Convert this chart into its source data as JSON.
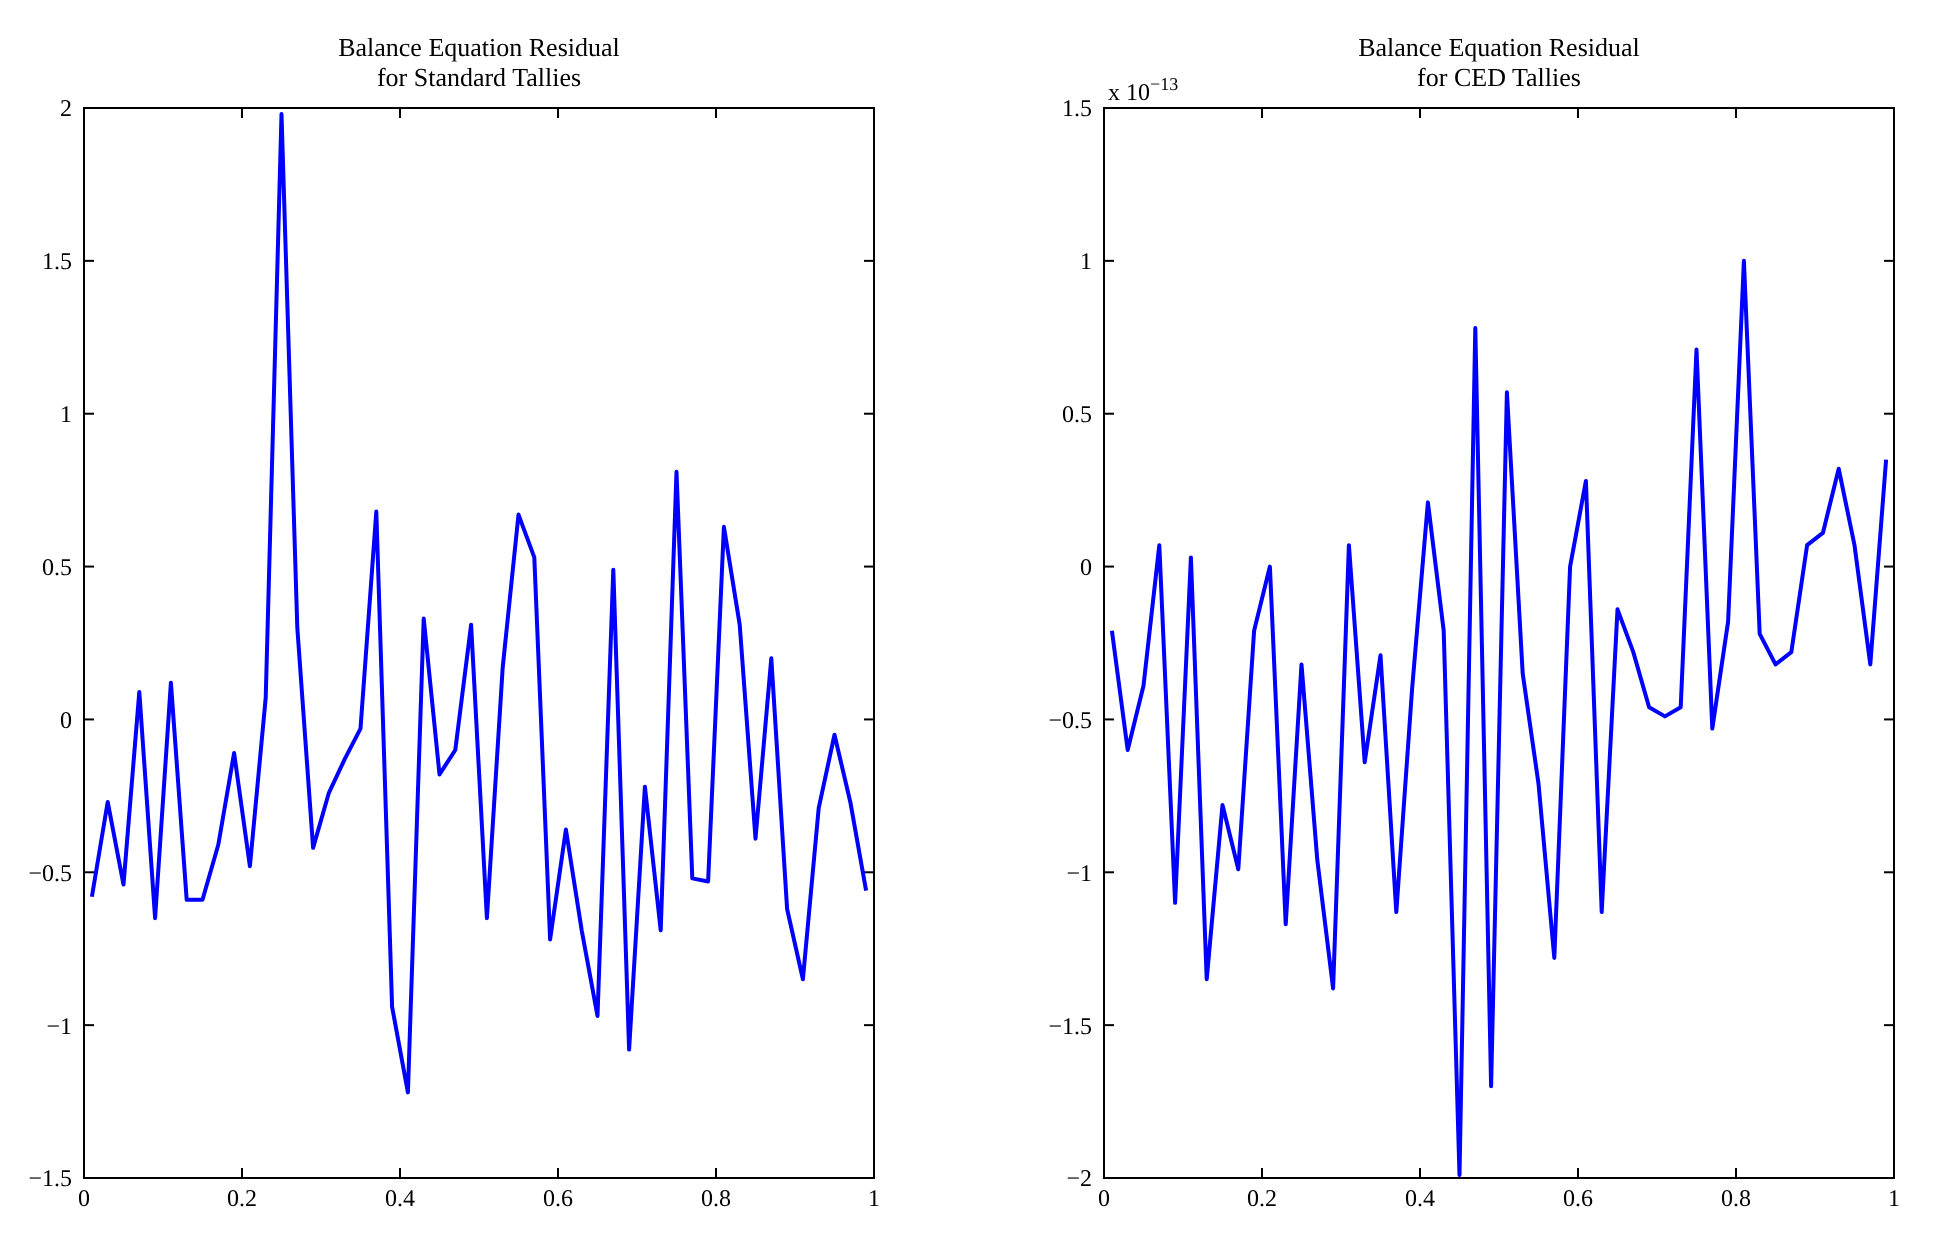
{
  "chart_data": [
    {
      "type": "line",
      "title": "Balance Equation Residual\nfor Standard Tallies",
      "x": [
        0.01,
        0.03,
        0.05,
        0.07,
        0.09,
        0.11,
        0.13,
        0.15,
        0.17,
        0.19,
        0.21,
        0.23,
        0.25,
        0.27,
        0.29,
        0.31,
        0.33,
        0.35,
        0.37,
        0.39,
        0.41,
        0.43,
        0.45,
        0.47,
        0.49,
        0.51,
        0.53,
        0.55,
        0.57,
        0.59,
        0.61,
        0.63,
        0.65,
        0.67,
        0.69,
        0.71,
        0.73,
        0.75,
        0.77,
        0.79,
        0.81,
        0.83,
        0.85,
        0.87,
        0.89,
        0.91,
        0.93,
        0.95,
        0.97,
        0.99
      ],
      "series": [
        {
          "color": "#0000ff",
          "values": [
            -0.58,
            -0.27,
            -0.54,
            0.09,
            -0.65,
            0.12,
            -0.59,
            -0.59,
            -0.41,
            -0.11,
            -0.48,
            0.07,
            1.98,
            0.3,
            -0.42,
            -0.24,
            -0.13,
            -0.03,
            0.68,
            -0.94,
            -1.22,
            0.33,
            -0.18,
            -0.1,
            0.31,
            -0.65,
            0.17,
            0.67,
            0.53,
            -0.72,
            -0.36,
            -0.69,
            -0.97,
            0.49,
            -1.08,
            -0.22,
            -0.69,
            0.81,
            -0.52,
            -0.53,
            0.63,
            0.31,
            -0.39,
            0.2,
            -0.62,
            -0.85,
            -0.29,
            -0.05,
            -0.27,
            -0.56
          ]
        }
      ],
      "xlim": [
        0,
        1
      ],
      "xticks": [
        0,
        0.2,
        0.4,
        0.6,
        0.8,
        1
      ],
      "ylim": [
        -1.5,
        2
      ],
      "yticks": [
        -1.5,
        -1,
        -0.5,
        0,
        0.5,
        1,
        1.5,
        2
      ],
      "grid": false
    },
    {
      "type": "line",
      "title": "Balance Equation Residual\nfor CED Tallies",
      "annotations": [
        "x 10$^{−13}$"
      ],
      "x": [
        0.01,
        0.03,
        0.05,
        0.07,
        0.09,
        0.11,
        0.13,
        0.15,
        0.17,
        0.19,
        0.21,
        0.23,
        0.25,
        0.27,
        0.29,
        0.31,
        0.33,
        0.35,
        0.37,
        0.39,
        0.41,
        0.43,
        0.45,
        0.47,
        0.49,
        0.51,
        0.53,
        0.55,
        0.57,
        0.59,
        0.61,
        0.63,
        0.65,
        0.67,
        0.69,
        0.71,
        0.73,
        0.75,
        0.77,
        0.79,
        0.81,
        0.83,
        0.85,
        0.87,
        0.89,
        0.91,
        0.93,
        0.95,
        0.97,
        0.99
      ],
      "series": [
        {
          "color": "#0000ff",
          "values": [
            -0.21,
            -0.6,
            -0.39,
            0.07,
            -1.1,
            0.03,
            -1.35,
            -0.78,
            -0.99,
            -0.21,
            0,
            -1.17,
            -0.32,
            -0.96,
            -1.38,
            0.07,
            -0.64,
            -0.29,
            -1.13,
            -0.4,
            0.21,
            -0.21,
            -1.99,
            0.78,
            -1.7,
            0.57,
            -0.35,
            -0.71,
            -1.28,
            0,
            0.28,
            -1.13,
            -0.14,
            -0.28,
            -0.46,
            -0.49,
            -0.46,
            0.71,
            -0.53,
            -0.18,
            1,
            -0.22,
            -0.32,
            -0.28,
            0.07,
            0.11,
            0.32,
            0.07,
            -0.32,
            0.35
          ]
        }
      ],
      "xlim": [
        0,
        1
      ],
      "xticks": [
        0,
        0.2,
        0.4,
        0.6,
        0.8,
        1
      ],
      "ylim": [
        -2,
        1.5
      ],
      "yticks": [
        -2,
        -1.5,
        -1,
        -0.5,
        0,
        0.5,
        1,
        1.5
      ],
      "grid": false
    }
  ]
}
